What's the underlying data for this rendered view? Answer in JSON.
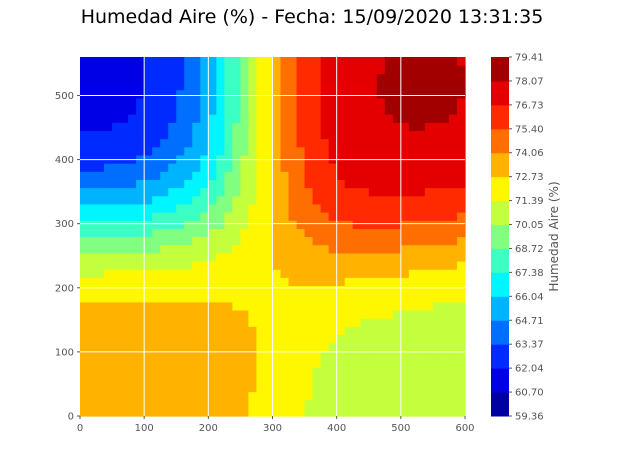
{
  "chart_data": {
    "type": "heatmap",
    "subtype": "filled-contour",
    "title": "Humedad Aire (%) - Fecha: 15/09/2020 13:31:35",
    "xlabel": "",
    "ylabel": "",
    "xlim": [
      0,
      600
    ],
    "ylim": [
      0,
      560
    ],
    "x_ticks": [
      0,
      100,
      200,
      300,
      400,
      500,
      600
    ],
    "y_ticks": [
      0,
      100,
      200,
      300,
      400,
      500
    ],
    "grid": true,
    "colormap": "jet",
    "colorbar": {
      "label": "Humedad Aire (%)",
      "min": 59.36,
      "max": 79.41,
      "ticks": [
        "79.41",
        "78.07",
        "76.73",
        "75.40",
        "74.06",
        "72.73",
        "71.39",
        "70.05",
        "68.72",
        "67.38",
        "66.04",
        "64.71",
        "63.37",
        "62.04",
        "60.70",
        "59.36"
      ]
    },
    "sensor_points": [
      {
        "x": 20,
        "y": 510,
        "value": 59.4
      },
      {
        "x": 505,
        "y": 500,
        "value": 79.4
      },
      {
        "x": 35,
        "y": 80,
        "value": 74.2
      },
      {
        "x": 580,
        "y": 40,
        "value": 70.2
      }
    ],
    "background_value": 72.0
  }
}
